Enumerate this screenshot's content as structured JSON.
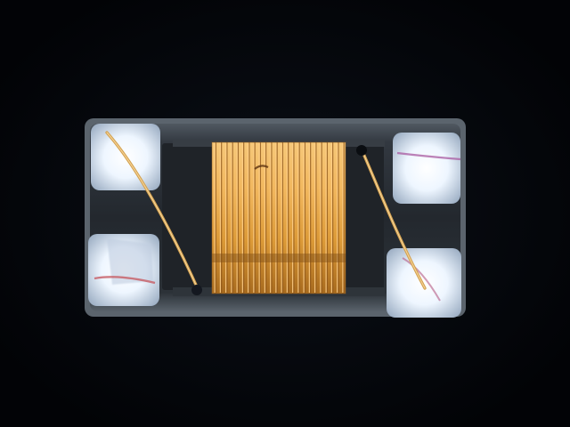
{
  "image": {
    "subject": "",
    "colors": {
      "background": "#030509",
      "body": "#2a2e33",
      "body_edge": "#6f7880",
      "pad": "#e9f3ff",
      "copper": "#e6a33f",
      "wire": "#d2a24d"
    }
  }
}
